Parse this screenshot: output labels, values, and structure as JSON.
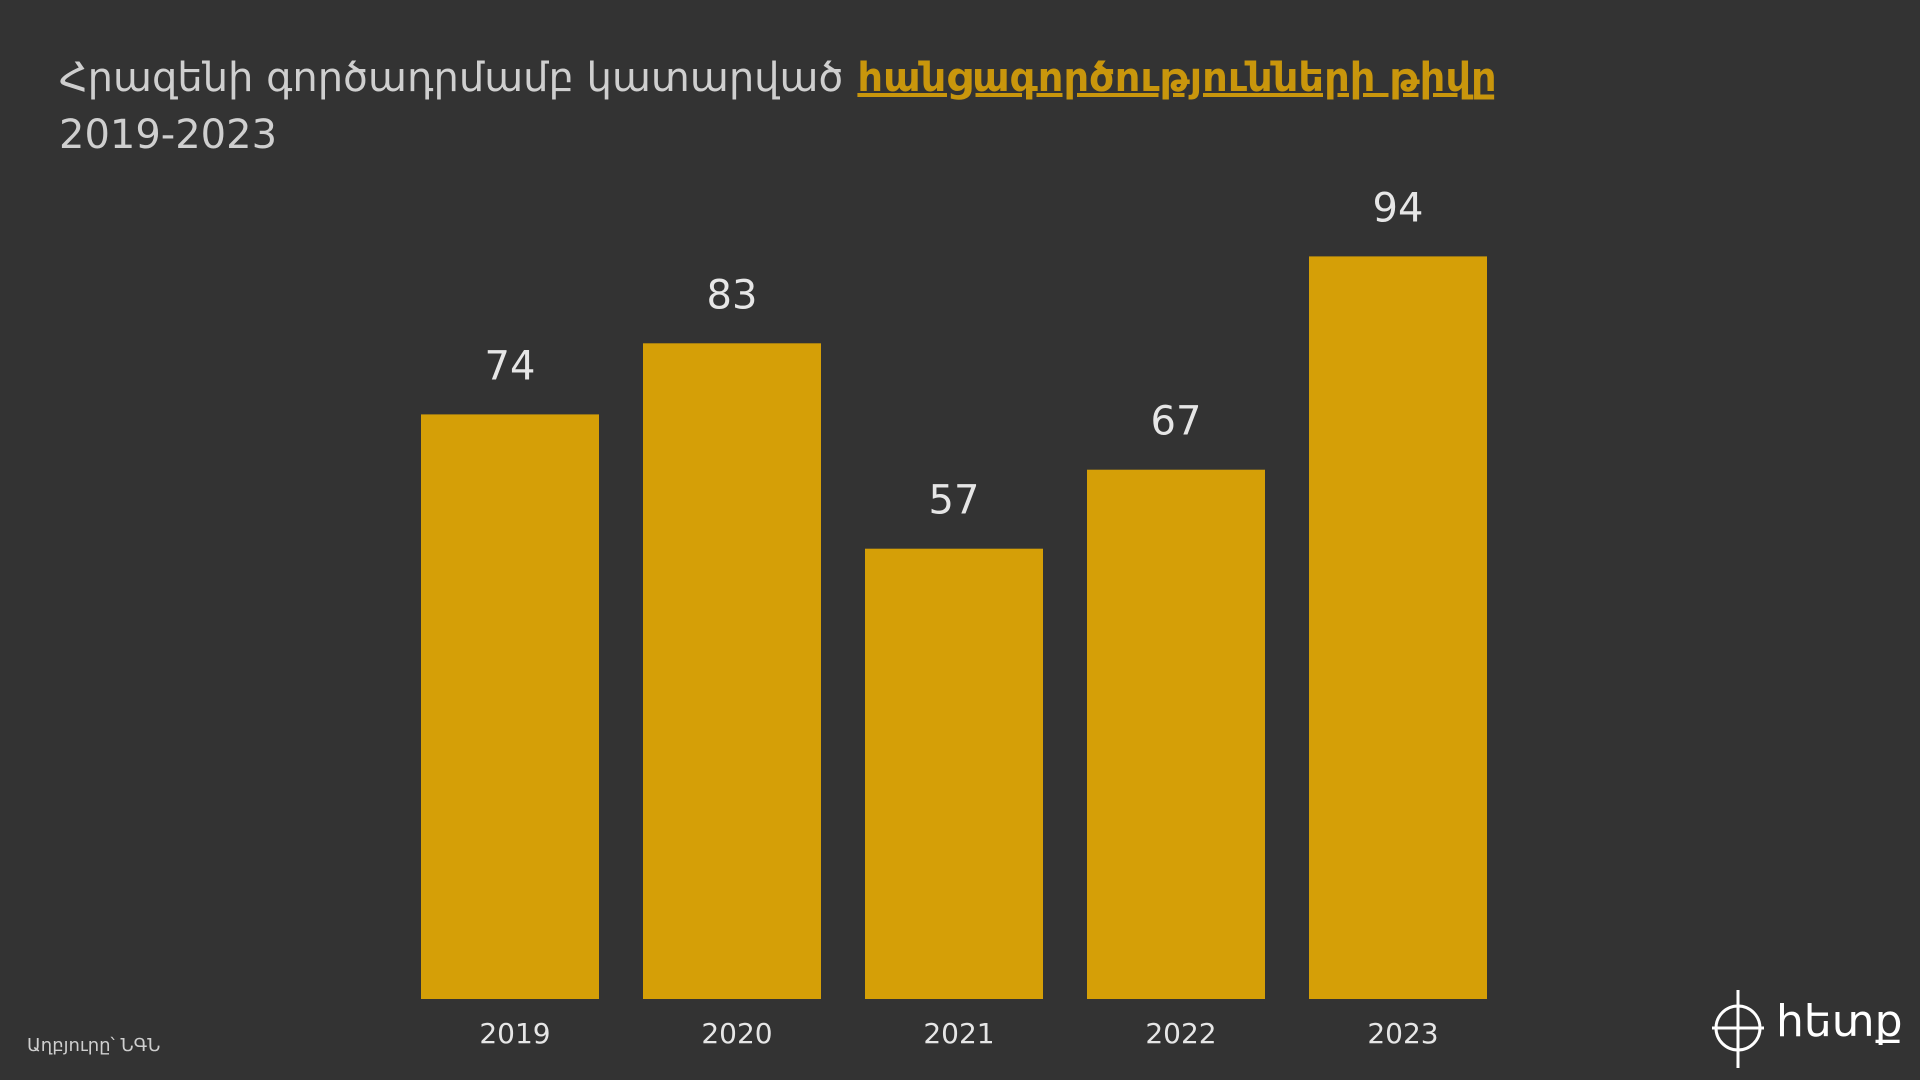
{
  "chart_data": {
    "type": "bar",
    "title": "Հրազենի գործադրմամբ կատարված",
    "title_highlight": "հանցագործությունների թիվը",
    "subtitle": "2019-2023",
    "categories": [
      "2019",
      "2020",
      "2021",
      "2022",
      "2023"
    ],
    "values": [
      74,
      83,
      57,
      67,
      94
    ],
    "color": "#d59f07",
    "highlight_color": "#c9960c",
    "source": "Աղբյուրը՝ ՆԳՆ",
    "logo": "հետք"
  }
}
